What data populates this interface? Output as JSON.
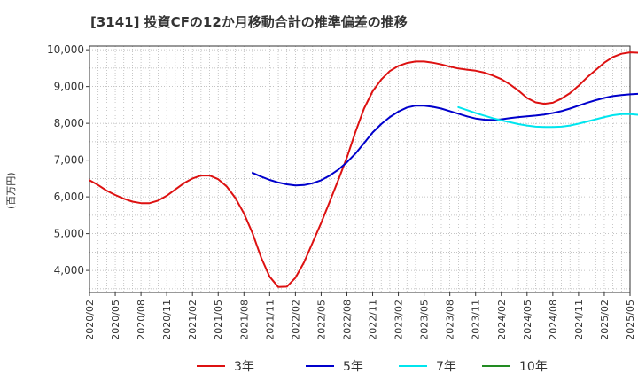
{
  "chart_data": {
    "type": "line",
    "title": "[3141]  投資CFの12か月移動合計の推準偏差の推移",
    "ylabel": "(百万円)",
    "xlabel": "",
    "ylim": [
      3400,
      10100
    ],
    "yticks": [
      4000,
      5000,
      6000,
      7000,
      8000,
      9000,
      10000
    ],
    "yticklabels": [
      "4,000",
      "5,000",
      "6,000",
      "7,000",
      "8,000",
      "9,000",
      "10,000"
    ],
    "xlim": [
      "2020-02",
      "2025-05"
    ],
    "xticklabels": [
      "2020/02",
      "2020/05",
      "2020/08",
      "2020/11",
      "2021/02",
      "2021/05",
      "2021/08",
      "2021/11",
      "2022/02",
      "2022/05",
      "2022/08",
      "2022/11",
      "2023/02",
      "2023/05",
      "2023/08",
      "2023/11",
      "2024/02",
      "2024/05",
      "2024/08",
      "2024/11",
      "2025/02",
      "2025/05"
    ],
    "grid": true,
    "legend_position": "bottom",
    "series": [
      {
        "name": "3年",
        "color": "#dd1111",
        "points": [
          [
            "2020-02",
            6450
          ],
          [
            "2020-03",
            6320
          ],
          [
            "2020-04",
            6170
          ],
          [
            "2020-05",
            6050
          ],
          [
            "2020-06",
            5950
          ],
          [
            "2020-07",
            5870
          ],
          [
            "2020-08",
            5830
          ],
          [
            "2020-09",
            5830
          ],
          [
            "2020-10",
            5900
          ],
          [
            "2020-11",
            6030
          ],
          [
            "2020-12",
            6200
          ],
          [
            "2021-01",
            6370
          ],
          [
            "2021-02",
            6500
          ],
          [
            "2021-03",
            6580
          ],
          [
            "2021-04",
            6580
          ],
          [
            "2021-05",
            6480
          ],
          [
            "2021-06",
            6280
          ],
          [
            "2021-07",
            5970
          ],
          [
            "2021-08",
            5550
          ],
          [
            "2021-09",
            5010
          ],
          [
            "2021-10",
            4350
          ],
          [
            "2021-11",
            3830
          ],
          [
            "2021-12",
            3550
          ],
          [
            "2022-01",
            3560
          ],
          [
            "2022-02",
            3800
          ],
          [
            "2022-03",
            4220
          ],
          [
            "2022-04",
            4750
          ],
          [
            "2022-05",
            5290
          ],
          [
            "2022-06",
            5870
          ],
          [
            "2022-07",
            6460
          ],
          [
            "2022-08",
            7070
          ],
          [
            "2022-09",
            7770
          ],
          [
            "2022-10",
            8400
          ],
          [
            "2022-11",
            8870
          ],
          [
            "2022-12",
            9190
          ],
          [
            "2023-01",
            9420
          ],
          [
            "2023-02",
            9560
          ],
          [
            "2023-03",
            9640
          ],
          [
            "2023-04",
            9680
          ],
          [
            "2023-05",
            9680
          ],
          [
            "2023-06",
            9650
          ],
          [
            "2023-07",
            9600
          ],
          [
            "2023-08",
            9540
          ],
          [
            "2023-09",
            9490
          ],
          [
            "2023-10",
            9460
          ],
          [
            "2023-11",
            9430
          ],
          [
            "2023-12",
            9380
          ],
          [
            "2024-01",
            9300
          ],
          [
            "2024-02",
            9200
          ],
          [
            "2024-03",
            9060
          ],
          [
            "2024-04",
            8890
          ],
          [
            "2024-05",
            8690
          ],
          [
            "2024-06",
            8570
          ],
          [
            "2024-07",
            8530
          ],
          [
            "2024-08",
            8560
          ],
          [
            "2024-09",
            8670
          ],
          [
            "2024-10",
            8820
          ],
          [
            "2024-11",
            9020
          ],
          [
            "2024-12",
            9250
          ],
          [
            "2025-01",
            9450
          ],
          [
            "2025-02",
            9650
          ],
          [
            "2025-03",
            9800
          ],
          [
            "2025-04",
            9890
          ],
          [
            "2025-05",
            9930
          ],
          [
            "2025-06",
            9920
          ],
          [
            "2025-07",
            9880
          ]
        ]
      },
      {
        "name": "5年",
        "color": "#0000cc",
        "points": [
          [
            "2021-09",
            6650
          ],
          [
            "2021-10",
            6550
          ],
          [
            "2021-11",
            6460
          ],
          [
            "2021-12",
            6390
          ],
          [
            "2022-01",
            6340
          ],
          [
            "2022-02",
            6310
          ],
          [
            "2022-03",
            6320
          ],
          [
            "2022-04",
            6370
          ],
          [
            "2022-05",
            6450
          ],
          [
            "2022-06",
            6580
          ],
          [
            "2022-07",
            6740
          ],
          [
            "2022-08",
            6940
          ],
          [
            "2022-09",
            7180
          ],
          [
            "2022-10",
            7460
          ],
          [
            "2022-11",
            7750
          ],
          [
            "2022-12",
            7980
          ],
          [
            "2023-01",
            8170
          ],
          [
            "2023-02",
            8320
          ],
          [
            "2023-03",
            8430
          ],
          [
            "2023-04",
            8480
          ],
          [
            "2023-05",
            8480
          ],
          [
            "2023-06",
            8450
          ],
          [
            "2023-07",
            8400
          ],
          [
            "2023-08",
            8330
          ],
          [
            "2023-09",
            8260
          ],
          [
            "2023-10",
            8190
          ],
          [
            "2023-11",
            8130
          ],
          [
            "2023-12",
            8100
          ],
          [
            "2024-01",
            8090
          ],
          [
            "2024-02",
            8110
          ],
          [
            "2024-03",
            8140
          ],
          [
            "2024-04",
            8170
          ],
          [
            "2024-05",
            8190
          ],
          [
            "2024-06",
            8210
          ],
          [
            "2024-07",
            8240
          ],
          [
            "2024-08",
            8280
          ],
          [
            "2024-09",
            8330
          ],
          [
            "2024-10",
            8400
          ],
          [
            "2024-11",
            8480
          ],
          [
            "2024-12",
            8560
          ],
          [
            "2025-01",
            8630
          ],
          [
            "2025-02",
            8690
          ],
          [
            "2025-03",
            8740
          ],
          [
            "2025-04",
            8770
          ],
          [
            "2025-05",
            8790
          ],
          [
            "2025-06",
            8800
          ],
          [
            "2025-07",
            8810
          ]
        ]
      },
      {
        "name": "7年",
        "color": "#00e5ee",
        "points": [
          [
            "2023-09",
            8440
          ],
          [
            "2023-10",
            8360
          ],
          [
            "2023-11",
            8280
          ],
          [
            "2023-12",
            8210
          ],
          [
            "2024-01",
            8140
          ],
          [
            "2024-02",
            8080
          ],
          [
            "2024-03",
            8030
          ],
          [
            "2024-04",
            7980
          ],
          [
            "2024-05",
            7940
          ],
          [
            "2024-06",
            7910
          ],
          [
            "2024-07",
            7900
          ],
          [
            "2024-08",
            7900
          ],
          [
            "2024-09",
            7910
          ],
          [
            "2024-10",
            7940
          ],
          [
            "2024-11",
            7990
          ],
          [
            "2024-12",
            8050
          ],
          [
            "2025-01",
            8110
          ],
          [
            "2025-02",
            8170
          ],
          [
            "2025-03",
            8220
          ],
          [
            "2025-04",
            8250
          ],
          [
            "2025-05",
            8250
          ],
          [
            "2025-06",
            8230
          ],
          [
            "2025-07",
            8190
          ]
        ]
      },
      {
        "name": "10年",
        "color": "#228b22",
        "points": []
      }
    ]
  }
}
